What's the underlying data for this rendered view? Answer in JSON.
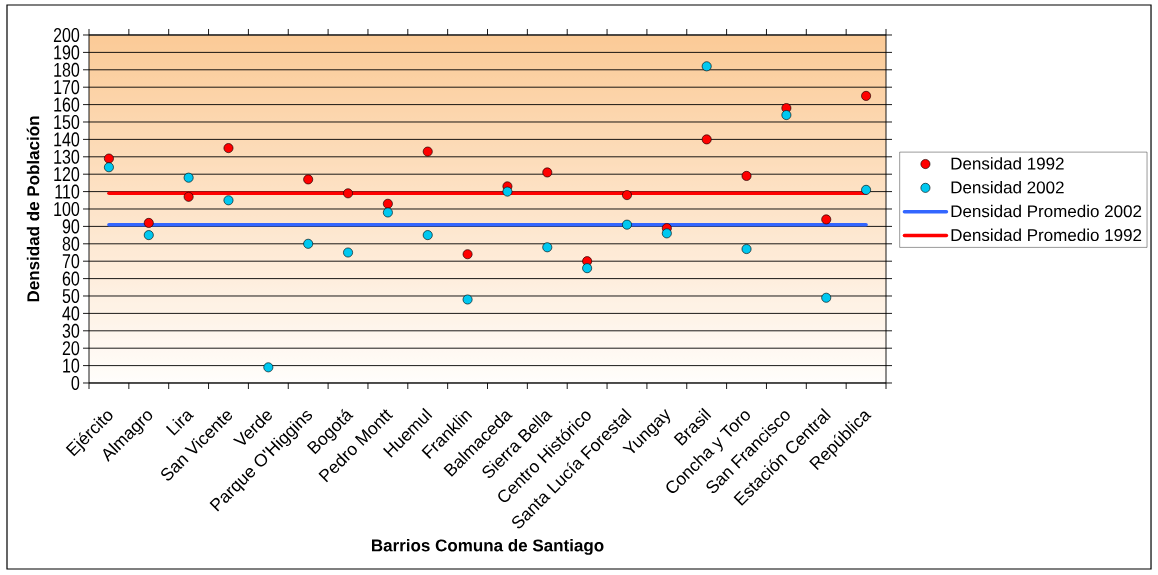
{
  "chart_data": {
    "type": "scatter",
    "xlabel": "Barrios Comuna de Santiago",
    "ylabel": "Densidad de Población",
    "categories": [
      "Ejército",
      "Almagro",
      "Lira",
      "San Vicente",
      "Verde",
      "Parque O'Higgins",
      "Bogotá",
      "Pedro Montt",
      "Huemul",
      "Franklin",
      "Balmaceda",
      "Sierra Bella",
      "Centro Histórico",
      "Santa Lucía Forestal",
      "Yungay",
      "Brasil",
      "Concha y Toro",
      "San Francisco",
      "Estación Central",
      "República"
    ],
    "series": [
      {
        "name": "Densidad 1992",
        "color": "#ff0000",
        "values": [
          129,
          92,
          107,
          135,
          null,
          117,
          109,
          103,
          133,
          74,
          113,
          121,
          70,
          108,
          89,
          140,
          119,
          158,
          94,
          165
        ]
      },
      {
        "name": "Densidad 2002",
        "color": "#00c8f0",
        "values": [
          124,
          85,
          118,
          105,
          9,
          80,
          75,
          98,
          85,
          48,
          110,
          78,
          66,
          91,
          86,
          182,
          77,
          154,
          49,
          111
        ]
      },
      {
        "name": "Densidad Promedio 2002",
        "type": "line",
        "marker": "none",
        "color": "#3366ff",
        "values": [
          91,
          91,
          91,
          91,
          91,
          91,
          91,
          91,
          91,
          91,
          91,
          91,
          91,
          91,
          91,
          91,
          91,
          91,
          91,
          91
        ]
      },
      {
        "name": "Densidad Promedio 1992",
        "type": "line",
        "marker": "none",
        "color": "#ff0000",
        "values": [
          109,
          109,
          109,
          109,
          109,
          109,
          109,
          109,
          109,
          109,
          109,
          109,
          109,
          109,
          109,
          109,
          109,
          109,
          109,
          109
        ]
      }
    ],
    "ylim": [
      0,
      200
    ],
    "yticks": [
      0,
      10,
      20,
      30,
      40,
      50,
      60,
      70,
      80,
      90,
      100,
      110,
      120,
      130,
      140,
      150,
      160,
      170,
      180,
      190,
      200
    ],
    "grid": "y",
    "legend": "right",
    "marker": "circle"
  }
}
